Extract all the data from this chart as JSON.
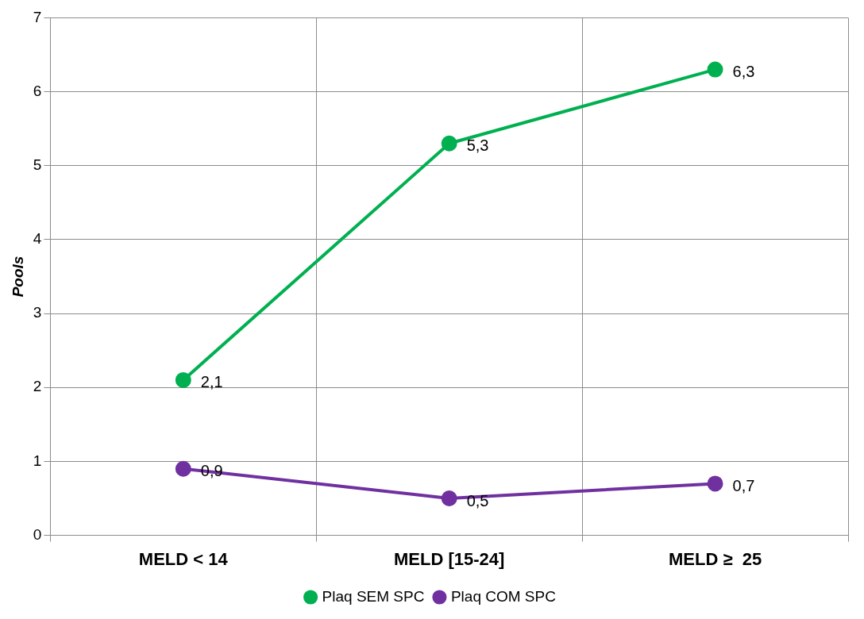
{
  "chart_data": {
    "type": "line",
    "ylabel": "Pools",
    "categories": [
      "MELD < 14",
      "MELD [15-24]",
      "MELD ≥  25"
    ],
    "series": [
      {
        "name": "Plaq SEM SPC",
        "color": "#00b050",
        "values": [
          2.1,
          5.3,
          6.3
        ],
        "value_labels": [
          "2,1",
          "5,3",
          "6,3"
        ]
      },
      {
        "name": "Plaq COM SPC",
        "color": "#7030a0",
        "values": [
          0.9,
          0.5,
          0.7
        ],
        "value_labels": [
          "0,9",
          "0,5",
          "0,7"
        ]
      }
    ],
    "ylim": [
      0,
      7
    ],
    "yticks": [
      0,
      1,
      2,
      3,
      4,
      5,
      6,
      7
    ],
    "grid": true,
    "legend": "bottom",
    "marker": "circle",
    "line_style": "solid"
  }
}
